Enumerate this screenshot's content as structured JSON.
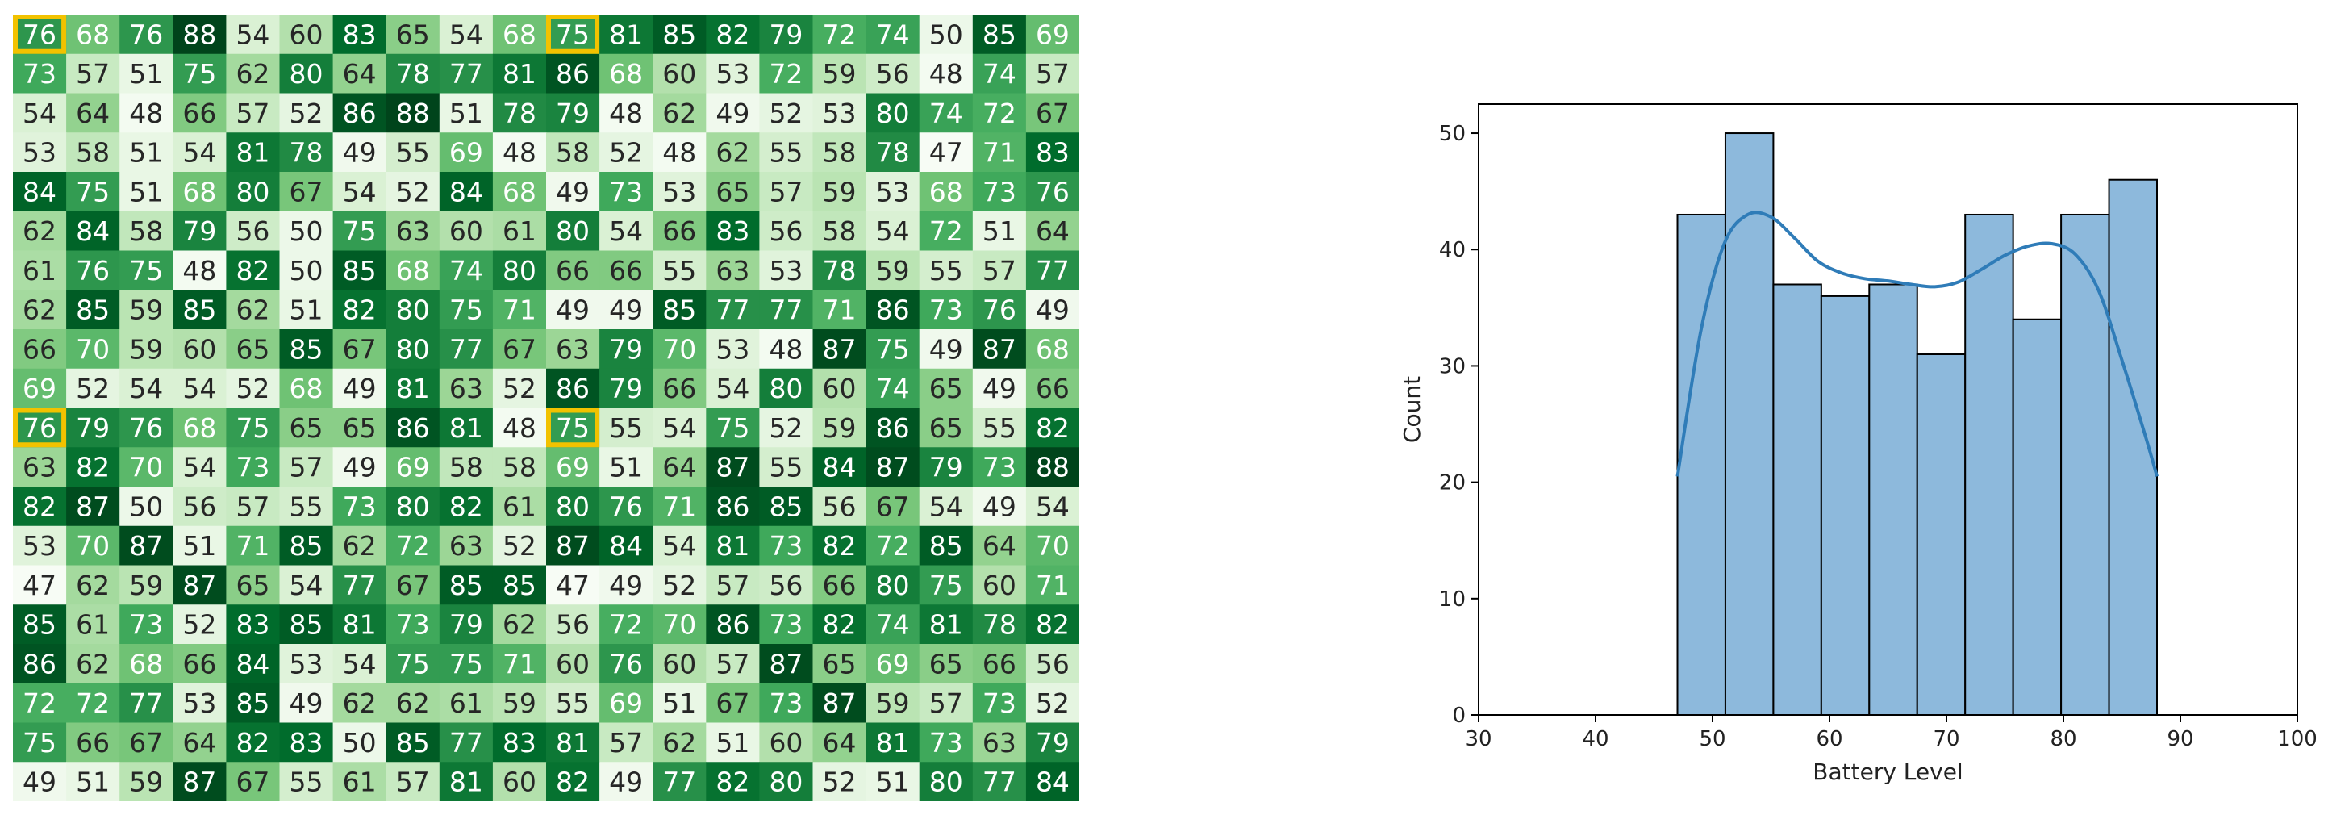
{
  "colors": {
    "heatmap_low": "#f7fcf5",
    "heatmap_high": "#00441b",
    "highlight": "#f2c200",
    "bar_fill": "#8db9dc",
    "bar_edge": "#000000",
    "kde_line": "#2f7cb8"
  },
  "chart_data": [
    {
      "type": "heatmap",
      "colormap": "Greens",
      "value_range": [
        47,
        88
      ],
      "rows": 20,
      "cols": 20,
      "values": [
        [
          76,
          68,
          76,
          88,
          54,
          60,
          83,
          65,
          54,
          68,
          75,
          81,
          85,
          82,
          79,
          72,
          74,
          50,
          85,
          69
        ],
        [
          73,
          57,
          51,
          75,
          62,
          80,
          64,
          78,
          77,
          81,
          86,
          68,
          60,
          53,
          72,
          59,
          56,
          48,
          74,
          57
        ],
        [
          54,
          64,
          48,
          66,
          57,
          52,
          86,
          88,
          51,
          78,
          79,
          48,
          62,
          49,
          52,
          53,
          80,
          74,
          72,
          67
        ],
        [
          53,
          58,
          51,
          54,
          81,
          78,
          49,
          55,
          69,
          48,
          58,
          52,
          48,
          62,
          55,
          58,
          78,
          47,
          71,
          83
        ],
        [
          84,
          75,
          51,
          68,
          80,
          67,
          54,
          52,
          84,
          68,
          49,
          73,
          53,
          65,
          57,
          59,
          53,
          68,
          73,
          76
        ],
        [
          62,
          84,
          58,
          79,
          56,
          50,
          75,
          63,
          60,
          61,
          80,
          54,
          66,
          83,
          56,
          58,
          54,
          72,
          51,
          64
        ],
        [
          61,
          76,
          75,
          48,
          82,
          50,
          85,
          68,
          74,
          80,
          66,
          66,
          55,
          63,
          53,
          78,
          59,
          55,
          57,
          77
        ],
        [
          62,
          85,
          59,
          85,
          62,
          51,
          82,
          80,
          75,
          71,
          49,
          49,
          85,
          77,
          77,
          71,
          86,
          73,
          76,
          49
        ],
        [
          66,
          70,
          59,
          60,
          65,
          85,
          67,
          80,
          77,
          67,
          63,
          79,
          70,
          53,
          48,
          87,
          75,
          49,
          87,
          68
        ],
        [
          69,
          52,
          54,
          54,
          52,
          68,
          49,
          81,
          63,
          52,
          86,
          79,
          66,
          54,
          80,
          60,
          74,
          65,
          49,
          66
        ],
        [
          76,
          79,
          76,
          68,
          75,
          65,
          65,
          86,
          81,
          48,
          75,
          55,
          54,
          75,
          52,
          59,
          86,
          65,
          55,
          82
        ],
        [
          63,
          82,
          70,
          54,
          73,
          57,
          49,
          69,
          58,
          58,
          69,
          51,
          64,
          87,
          55,
          84,
          87,
          79,
          73,
          88
        ],
        [
          82,
          87,
          50,
          56,
          57,
          55,
          73,
          80,
          82,
          61,
          80,
          76,
          71,
          86,
          85,
          56,
          67,
          54,
          49,
          54
        ],
        [
          53,
          70,
          87,
          51,
          71,
          85,
          62,
          72,
          63,
          52,
          87,
          84,
          54,
          81,
          73,
          82,
          72,
          85,
          64,
          70
        ],
        [
          47,
          62,
          59,
          87,
          65,
          54,
          77,
          67,
          85,
          85,
          47,
          49,
          52,
          57,
          56,
          66,
          80,
          75,
          60,
          71
        ],
        [
          85,
          61,
          73,
          52,
          83,
          85,
          81,
          73,
          79,
          62,
          56,
          72,
          70,
          86,
          73,
          82,
          74,
          81,
          78,
          82
        ],
        [
          86,
          62,
          68,
          66,
          84,
          53,
          54,
          75,
          75,
          71,
          60,
          76,
          60,
          57,
          87,
          65,
          69,
          65,
          66,
          56
        ],
        [
          72,
          72,
          77,
          53,
          85,
          49,
          62,
          62,
          61,
          59,
          55,
          69,
          51,
          67,
          73,
          87,
          59,
          57,
          73,
          52
        ],
        [
          75,
          66,
          67,
          64,
          82,
          83,
          50,
          85,
          77,
          83,
          81,
          57,
          62,
          51,
          60,
          64,
          81,
          73,
          63,
          79
        ],
        [
          49,
          51,
          59,
          87,
          67,
          55,
          61,
          57,
          81,
          60,
          82,
          49,
          77,
          82,
          80,
          52,
          51,
          80,
          77,
          84
        ]
      ],
      "highlighted_cells": [
        [
          0,
          0
        ],
        [
          0,
          10
        ],
        [
          10,
          0
        ],
        [
          10,
          10
        ]
      ]
    },
    {
      "type": "bar",
      "subtype": "histogram",
      "xlabel": "Battery Level",
      "ylabel": "Count",
      "xlim": [
        30,
        100
      ],
      "ylim": [
        0,
        52.5
      ],
      "x_ticks": [
        30,
        40,
        50,
        60,
        70,
        80,
        90,
        100
      ],
      "y_ticks": [
        0,
        10,
        20,
        30,
        40,
        50
      ],
      "bins": [
        {
          "x0": 47.0,
          "x1": 51.1,
          "count": 43
        },
        {
          "x0": 51.1,
          "x1": 55.2,
          "count": 50
        },
        {
          "x0": 55.2,
          "x1": 59.3,
          "count": 37
        },
        {
          "x0": 59.3,
          "x1": 63.4,
          "count": 36
        },
        {
          "x0": 63.4,
          "x1": 67.5,
          "count": 37
        },
        {
          "x0": 67.5,
          "x1": 71.6,
          "count": 31
        },
        {
          "x0": 71.6,
          "x1": 75.7,
          "count": 43
        },
        {
          "x0": 75.7,
          "x1": 79.8,
          "count": 34
        },
        {
          "x0": 79.8,
          "x1": 83.9,
          "count": 43
        },
        {
          "x0": 83.9,
          "x1": 88.0,
          "count": 46
        }
      ],
      "kde": {
        "x": [
          47,
          49,
          51,
          53,
          55,
          57,
          59,
          61,
          63,
          65,
          67,
          69,
          71,
          73,
          75,
          77,
          79,
          81,
          83,
          85,
          87,
          88
        ],
        "y": [
          20.5,
          33,
          40.5,
          43,
          42.8,
          41,
          39,
          38,
          37.5,
          37.3,
          37,
          36.8,
          37.2,
          38.3,
          39.5,
          40.3,
          40.5,
          39.6,
          36.5,
          30.5,
          24,
          20.5
        ]
      },
      "grid": false
    }
  ]
}
